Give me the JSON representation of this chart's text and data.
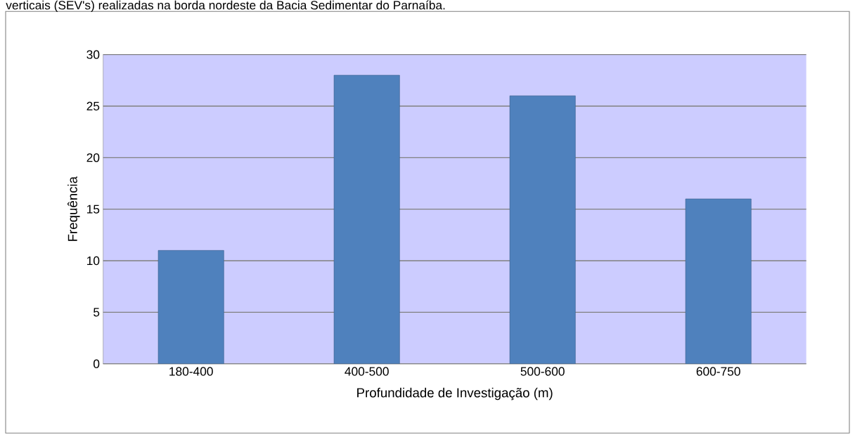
{
  "chart_data": {
    "type": "bar",
    "annotations": [
      "verticais (SEV's) realizadas na borda nordeste da Bacia Sedimentar do Parnaíba."
    ],
    "xlabel": "Profundidade de Investigação (m)",
    "ylabel": "Frequência",
    "categories": [
      "180-400",
      "400-500",
      "500-600",
      "600-750"
    ],
    "values": [
      11,
      28,
      26,
      16
    ],
    "color": "#4f81bd",
    "ylim": [
      0,
      30
    ],
    "yticks": [
      0,
      5,
      10,
      15,
      20,
      25,
      30
    ],
    "grid": "y"
  }
}
